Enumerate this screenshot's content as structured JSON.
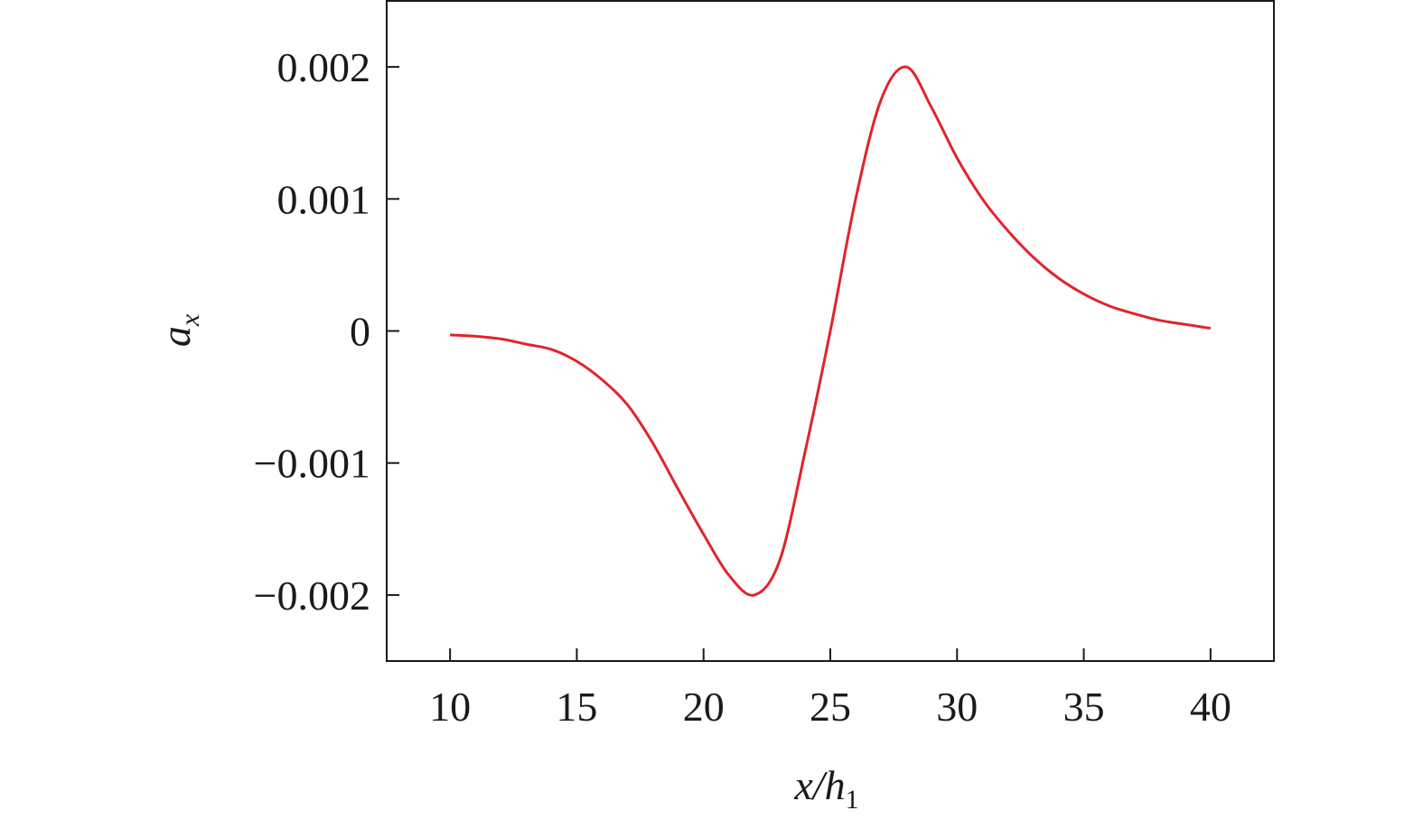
{
  "chart_data": {
    "type": "line",
    "xlabel": "x/h",
    "xlabel_subscript": "1",
    "ylabel": "a",
    "ylabel_subscript": "x",
    "x": [
      10,
      11,
      12,
      13,
      14,
      15,
      16,
      17,
      18,
      19,
      20,
      21,
      22,
      23,
      24,
      25,
      26,
      27,
      28,
      29,
      30,
      31,
      32,
      33,
      34,
      35,
      36,
      37,
      38,
      39,
      40
    ],
    "series": [
      {
        "color": "#e0242b",
        "values": [
          -3e-05,
          -4e-05,
          -6e-05,
          -0.0001,
          -0.00014,
          -0.00023,
          -0.00037,
          -0.00056,
          -0.00085,
          -0.0012,
          -0.00154,
          -0.00185,
          -0.002,
          -0.00174,
          -0.00092,
          0,
          0.001,
          0.00175,
          0.002,
          0.00169,
          0.00131,
          0.001,
          0.00076,
          0.00056,
          0.0004,
          0.00028,
          0.00019,
          0.00013,
          8e-05,
          5e-05,
          2e-05
        ]
      }
    ],
    "xlim": [
      7.5,
      42.5
    ],
    "xticks": [
      10,
      15,
      20,
      25,
      30,
      35,
      40
    ],
    "ylim": [
      -0.0025,
      0.0025
    ],
    "yticks": [
      {
        "value": -0.002,
        "label": "−0.002"
      },
      {
        "value": -0.001,
        "label": "−0.001"
      },
      0,
      0.001,
      0.002
    ],
    "grid": false
  }
}
